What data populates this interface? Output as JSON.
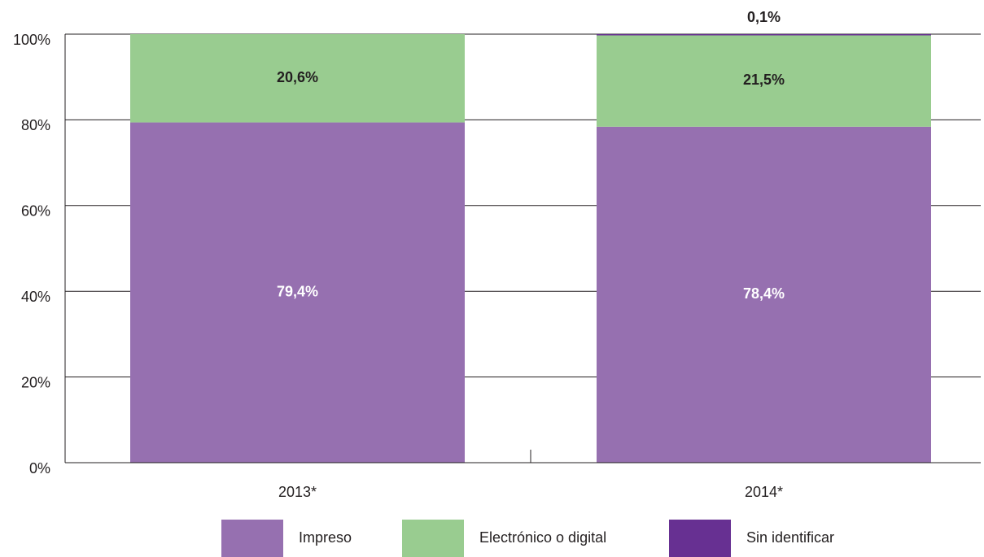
{
  "chart_data": {
    "type": "stacked_bar",
    "categories": [
      "2013*",
      "2014*"
    ],
    "series": [
      {
        "name": "Impreso",
        "color": "#9670b0",
        "values": [
          79.4,
          78.4
        ],
        "value_labels": [
          "79,4%",
          "78,4%"
        ]
      },
      {
        "name": "Electrónico o digital",
        "color": "#99cc90",
        "values": [
          20.6,
          21.5
        ],
        "value_labels": [
          "20,6%",
          "21,5%"
        ]
      },
      {
        "name": "Sin identificar",
        "color": "#673092",
        "values": [
          null,
          0.1
        ],
        "value_labels": [
          null,
          "0,1%"
        ]
      }
    ],
    "ylim": [
      0,
      100
    ],
    "yticks": [
      {
        "value": 0,
        "label": "0%"
      },
      {
        "value": 20,
        "label": "20%"
      },
      {
        "value": 40,
        "label": "40%"
      },
      {
        "value": 60,
        "label": "60%"
      },
      {
        "value": 80,
        "label": "80%"
      },
      {
        "value": 100,
        "label": "100%"
      }
    ],
    "grid": true
  }
}
